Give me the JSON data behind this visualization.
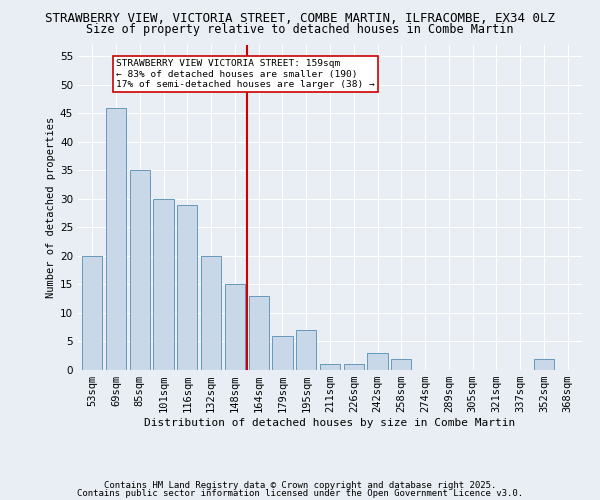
{
  "title1": "STRAWBERRY VIEW, VICTORIA STREET, COMBE MARTIN, ILFRACOMBE, EX34 0LZ",
  "title2": "Size of property relative to detached houses in Combe Martin",
  "xlabel": "Distribution of detached houses by size in Combe Martin",
  "ylabel": "Number of detached properties",
  "categories": [
    "53sqm",
    "69sqm",
    "85sqm",
    "101sqm",
    "116sqm",
    "132sqm",
    "148sqm",
    "164sqm",
    "179sqm",
    "195sqm",
    "211sqm",
    "226sqm",
    "242sqm",
    "258sqm",
    "274sqm",
    "289sqm",
    "305sqm",
    "321sqm",
    "337sqm",
    "352sqm",
    "368sqm"
  ],
  "values": [
    20,
    46,
    35,
    30,
    29,
    20,
    15,
    13,
    6,
    7,
    1,
    1,
    3,
    2,
    0,
    0,
    0,
    0,
    0,
    2,
    0
  ],
  "bar_color": "#c8d8e8",
  "bar_edge_color": "#6699bb",
  "vline_x": 6.5,
  "vline_color": "#cc0000",
  "annotation_text": "STRAWBERRY VIEW VICTORIA STREET: 159sqm\n← 83% of detached houses are smaller (190)\n17% of semi-detached houses are larger (38) →",
  "annotation_box_color": "#ffffff",
  "annotation_box_edge": "#cc0000",
  "ylim": [
    0,
    57
  ],
  "yticks": [
    0,
    5,
    10,
    15,
    20,
    25,
    30,
    35,
    40,
    45,
    50,
    55
  ],
  "background_color": "#e8eef4",
  "grid_color": "#ffffff",
  "footer1": "Contains HM Land Registry data © Crown copyright and database right 2025.",
  "footer2": "Contains public sector information licensed under the Open Government Licence v3.0.",
  "title1_fontsize": 9,
  "title2_fontsize": 8.5,
  "tick_fontsize": 7.5,
  "ylabel_fontsize": 7.5,
  "xlabel_fontsize": 8,
  "annotation_fontsize": 6.8,
  "footer_fontsize": 6.5
}
